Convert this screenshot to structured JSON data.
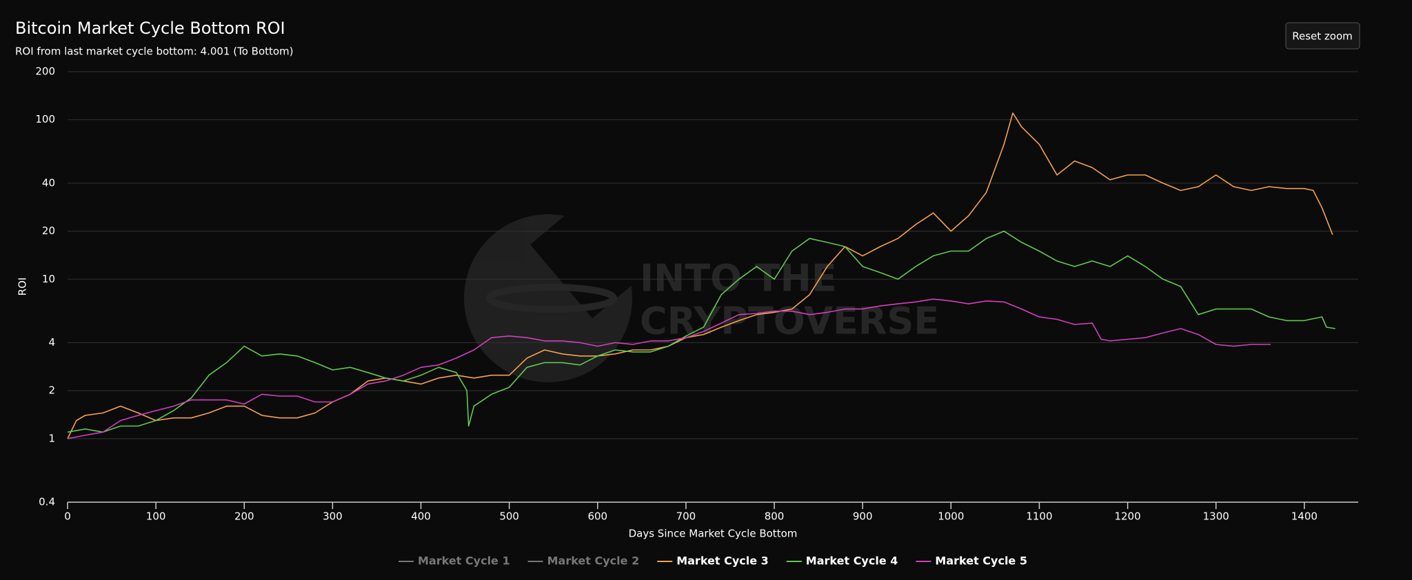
{
  "chart_data": {
    "type": "line",
    "title": "Bitcoin Market Cycle Bottom ROI",
    "subtitle": "ROI from last market cycle bottom: 4.001 (To Bottom)",
    "button": "Reset zoom",
    "watermark": [
      "INTO THE",
      "CRYPTOVERSE"
    ],
    "x_label": "Days Since Market Cycle Bottom",
    "y_label": "ROI",
    "y_scale": "log",
    "grid": true,
    "xlim": [
      0,
      1461
    ],
    "ylim": [
      0.4,
      200
    ],
    "xticks": [
      0,
      100,
      200,
      300,
      400,
      500,
      600,
      700,
      800,
      900,
      1000,
      1100,
      1200,
      1300,
      1400
    ],
    "yticks": [
      0.4,
      1,
      2,
      4,
      10,
      20,
      40,
      100,
      200
    ],
    "series": [
      {
        "name": "Market Cycle 1",
        "color": "#777777",
        "visible": false
      },
      {
        "name": "Market Cycle 2",
        "color": "#777777",
        "visible": false
      },
      {
        "name": "Market Cycle 3",
        "color": "#f7a24b",
        "visible": true,
        "x": [
          0,
          10,
          20,
          40,
          60,
          80,
          100,
          120,
          140,
          160,
          180,
          200,
          220,
          240,
          260,
          280,
          300,
          320,
          340,
          360,
          380,
          400,
          420,
          440,
          460,
          480,
          500,
          520,
          540,
          560,
          580,
          600,
          620,
          640,
          660,
          680,
          700,
          720,
          740,
          760,
          780,
          800,
          820,
          840,
          860,
          880,
          900,
          920,
          940,
          960,
          980,
          1000,
          1020,
          1040,
          1060,
          1070,
          1080,
          1100,
          1120,
          1140,
          1160,
          1180,
          1200,
          1220,
          1240,
          1260,
          1280,
          1300,
          1320,
          1340,
          1360,
          1380,
          1400,
          1410,
          1420,
          1432
        ],
        "values": [
          1.0,
          1.3,
          1.4,
          1.45,
          1.6,
          1.45,
          1.3,
          1.35,
          1.35,
          1.45,
          1.6,
          1.6,
          1.4,
          1.35,
          1.35,
          1.45,
          1.7,
          1.9,
          2.3,
          2.4,
          2.3,
          2.2,
          2.4,
          2.5,
          2.4,
          2.5,
          2.5,
          3.2,
          3.6,
          3.4,
          3.3,
          3.3,
          3.4,
          3.6,
          3.6,
          3.8,
          4.3,
          4.5,
          5.0,
          5.5,
          6.0,
          6.2,
          6.5,
          8,
          12,
          16,
          14,
          16,
          18,
          22,
          26,
          20,
          25,
          35,
          70,
          110,
          90,
          70,
          45,
          55,
          50,
          42,
          45,
          45,
          40,
          36,
          38,
          45,
          38,
          36,
          38,
          37,
          37,
          36,
          28,
          19
        ]
      },
      {
        "name": "Market Cycle 4",
        "color": "#5fcc4a",
        "visible": true,
        "x": [
          0,
          20,
          40,
          60,
          80,
          100,
          120,
          140,
          160,
          180,
          200,
          220,
          240,
          260,
          280,
          300,
          320,
          340,
          360,
          380,
          400,
          420,
          440,
          452,
          454,
          460,
          480,
          500,
          520,
          540,
          560,
          580,
          600,
          620,
          640,
          660,
          680,
          700,
          720,
          740,
          760,
          780,
          800,
          820,
          840,
          860,
          880,
          900,
          920,
          940,
          960,
          980,
          1000,
          1020,
          1040,
          1060,
          1080,
          1100,
          1120,
          1140,
          1160,
          1180,
          1200,
          1220,
          1240,
          1260,
          1280,
          1300,
          1320,
          1340,
          1360,
          1380,
          1400,
          1420,
          1425,
          1435
        ],
        "values": [
          1.1,
          1.15,
          1.1,
          1.2,
          1.2,
          1.3,
          1.5,
          1.8,
          2.5,
          3.0,
          3.8,
          3.3,
          3.4,
          3.3,
          3.0,
          2.7,
          2.8,
          2.6,
          2.4,
          2.3,
          2.5,
          2.8,
          2.6,
          2.0,
          1.2,
          1.6,
          1.9,
          2.1,
          2.8,
          3.0,
          3.0,
          2.9,
          3.3,
          3.6,
          3.5,
          3.5,
          3.8,
          4.4,
          5.0,
          8,
          10,
          12,
          10,
          15,
          18,
          17,
          16,
          12,
          11,
          10,
          12,
          14,
          15,
          15,
          18,
          20,
          17,
          15,
          13,
          12,
          13,
          12,
          14,
          12,
          10,
          9,
          6,
          6.5,
          6.5,
          6.5,
          5.8,
          5.5,
          5.5,
          5.8,
          5.0,
          4.9
        ]
      },
      {
        "name": "Market Cycle 5",
        "color": "#d43fbf",
        "visible": true,
        "x": [
          0,
          20,
          40,
          60,
          80,
          100,
          120,
          140,
          160,
          180,
          200,
          220,
          240,
          260,
          280,
          300,
          320,
          340,
          360,
          380,
          400,
          420,
          440,
          460,
          480,
          500,
          520,
          540,
          560,
          580,
          600,
          620,
          640,
          660,
          680,
          700,
          720,
          740,
          760,
          780,
          800,
          820,
          840,
          860,
          880,
          900,
          920,
          940,
          960,
          980,
          1000,
          1020,
          1040,
          1060,
          1080,
          1100,
          1120,
          1140,
          1160,
          1170,
          1180,
          1200,
          1220,
          1240,
          1260,
          1280,
          1300,
          1320,
          1340,
          1362
        ],
        "values": [
          1.0,
          1.05,
          1.1,
          1.3,
          1.4,
          1.5,
          1.6,
          1.75,
          1.75,
          1.75,
          1.65,
          1.9,
          1.85,
          1.85,
          1.7,
          1.7,
          1.9,
          2.2,
          2.3,
          2.5,
          2.8,
          2.9,
          3.2,
          3.6,
          4.3,
          4.4,
          4.3,
          4.1,
          4.1,
          4.0,
          3.8,
          4.0,
          3.9,
          4.1,
          4.1,
          4.3,
          4.7,
          5.3,
          6.0,
          6.1,
          6.3,
          6.3,
          6.0,
          6.2,
          6.5,
          6.5,
          6.8,
          7.0,
          7.2,
          7.5,
          7.3,
          7.0,
          7.3,
          7.2,
          6.5,
          5.8,
          5.6,
          5.2,
          5.3,
          4.2,
          4.1,
          4.2,
          4.3,
          4.6,
          4.9,
          4.5,
          3.9,
          3.8,
          3.9,
          3.9
        ]
      }
    ]
  }
}
